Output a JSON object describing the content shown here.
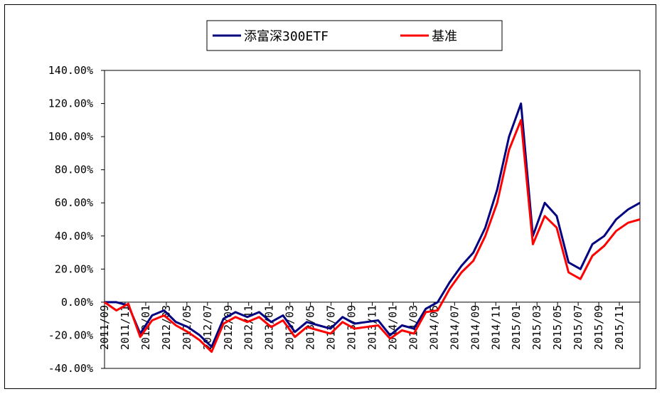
{
  "chart_data": {
    "type": "line",
    "title": "",
    "xlabel": "",
    "ylabel": "",
    "ylim": [
      -40,
      140
    ],
    "y_ticks": [
      140,
      120,
      100,
      80,
      60,
      40,
      20,
      0,
      -20,
      -40
    ],
    "y_tick_labels": [
      "140.00%",
      "120.00%",
      "100.00%",
      "80.00%",
      "60.00%",
      "40.00%",
      "20.00%",
      "0.00%",
      "-20.00%",
      "-40.00%"
    ],
    "x_tick_labels": [
      "2011/09",
      "2011/11",
      "2012/01",
      "2012/03",
      "2012/05",
      "2012/07",
      "2012/09",
      "2012/11",
      "2013/01",
      "2013/03",
      "2013/05",
      "2013/07",
      "2013/09",
      "2013/11",
      "2014/01",
      "2014/03",
      "2014/05",
      "2014/07",
      "2014/09",
      "2014/11",
      "2015/01",
      "2015/03",
      "2015/05",
      "2015/07",
      "2015/09",
      "2015/11"
    ],
    "legend_position": "top-center",
    "grid": false,
    "colors": {
      "fund": "#000080",
      "benchmark": "#ff0000"
    },
    "series": [
      {
        "name": "添富深300ETF",
        "values": [
          0,
          0,
          -2,
          -19,
          -8,
          -5,
          -12,
          -15,
          -20,
          -27,
          -10,
          -6,
          -9,
          -6,
          -12,
          -8,
          -18,
          -12,
          -14,
          -16,
          -9,
          -13,
          -12,
          -11,
          -20,
          -14,
          -16,
          -4,
          0,
          12,
          22,
          30,
          45,
          68,
          100,
          120,
          40,
          60,
          52,
          24,
          20,
          35,
          40,
          50,
          56,
          60
        ]
      },
      {
        "name": "基准",
        "values": [
          0,
          -5,
          -1,
          -21,
          -11,
          -8,
          -14,
          -18,
          -23,
          -30,
          -13,
          -9,
          -12,
          -9,
          -15,
          -11,
          -21,
          -15,
          -17,
          -19,
          -12,
          -16,
          -15,
          -14,
          -22,
          -17,
          -19,
          -6,
          -5,
          8,
          18,
          25,
          40,
          60,
          92,
          110,
          35,
          52,
          45,
          18,
          14,
          28,
          34,
          43,
          48,
          50
        ]
      }
    ]
  }
}
